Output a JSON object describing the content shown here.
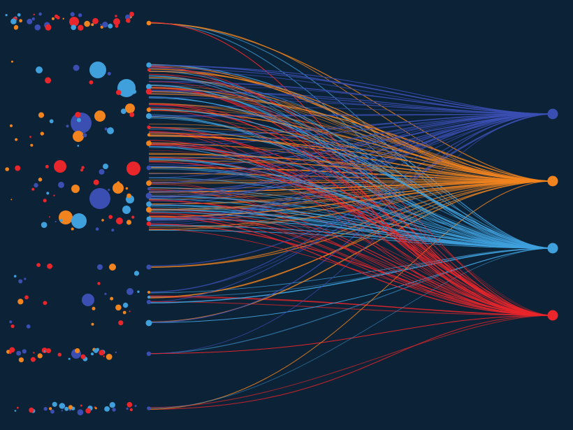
{
  "scene": {
    "background": "#0c2236",
    "palette": {
      "dark_blue": "#3b4fb3",
      "orange": "#f2841f",
      "light_blue": "#3fa0dc",
      "red": "#e8262b"
    },
    "targets": [
      {
        "name": "dark-blue-target-node",
        "color_key": "dark_blue"
      },
      {
        "name": "orange-target-node",
        "color_key": "orange"
      },
      {
        "name": "light-blue-target-node",
        "color_key": "light_blue"
      },
      {
        "name": "red-target-node",
        "color_key": "red"
      }
    ]
  }
}
